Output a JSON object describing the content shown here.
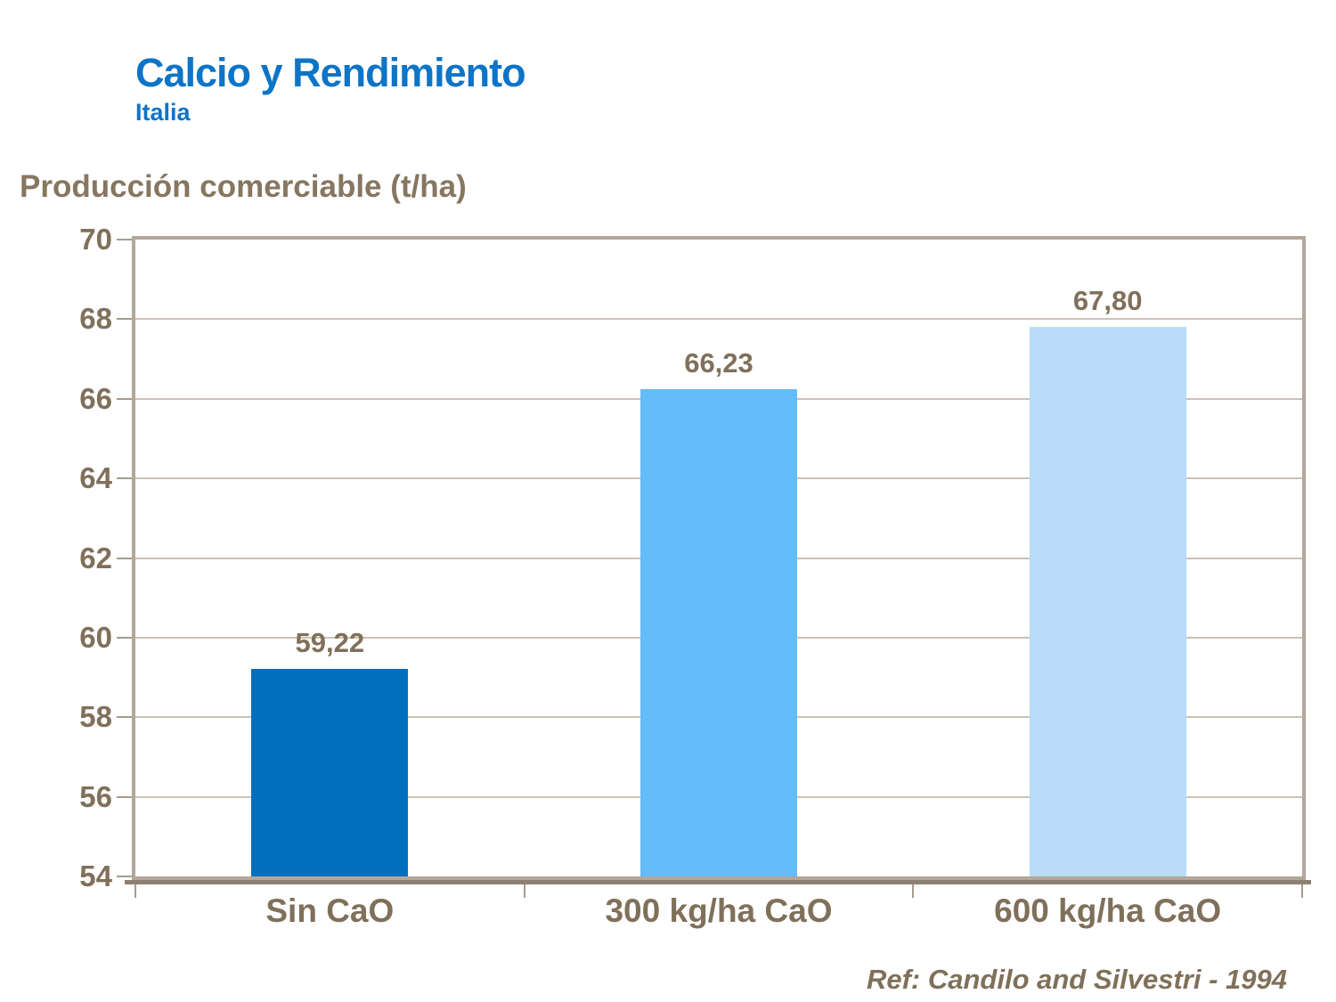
{
  "header": {
    "title": "Calcio y Rendimiento",
    "subtitle": "Italia"
  },
  "chart_data": {
    "type": "bar",
    "axis_title": "Producción comerciable (t/ha)",
    "categories": [
      "Sin CaO",
      "300 kg/ha CaO",
      "600 kg/ha CaO"
    ],
    "values": [
      59.22,
      66.23,
      67.8
    ],
    "value_labels": [
      "59,22",
      "66,23",
      "67,80"
    ],
    "bar_colors": [
      "#0070BE",
      "#65BCFA",
      "#B9DCFB"
    ],
    "ylim": [
      54,
      70
    ],
    "yticks": [
      54,
      56,
      58,
      60,
      62,
      64,
      66,
      68,
      70
    ],
    "grid": true,
    "legend": "none"
  },
  "footer": {
    "reference": "Ref: Candilo and Silvestri - 1994"
  },
  "colors": {
    "title_blue": "#0D74C7",
    "text_brown": "#80705A",
    "border_taupe": "#B3A79A",
    "gridline": "#CBC2B5",
    "axis_dark": "#8C8072"
  }
}
